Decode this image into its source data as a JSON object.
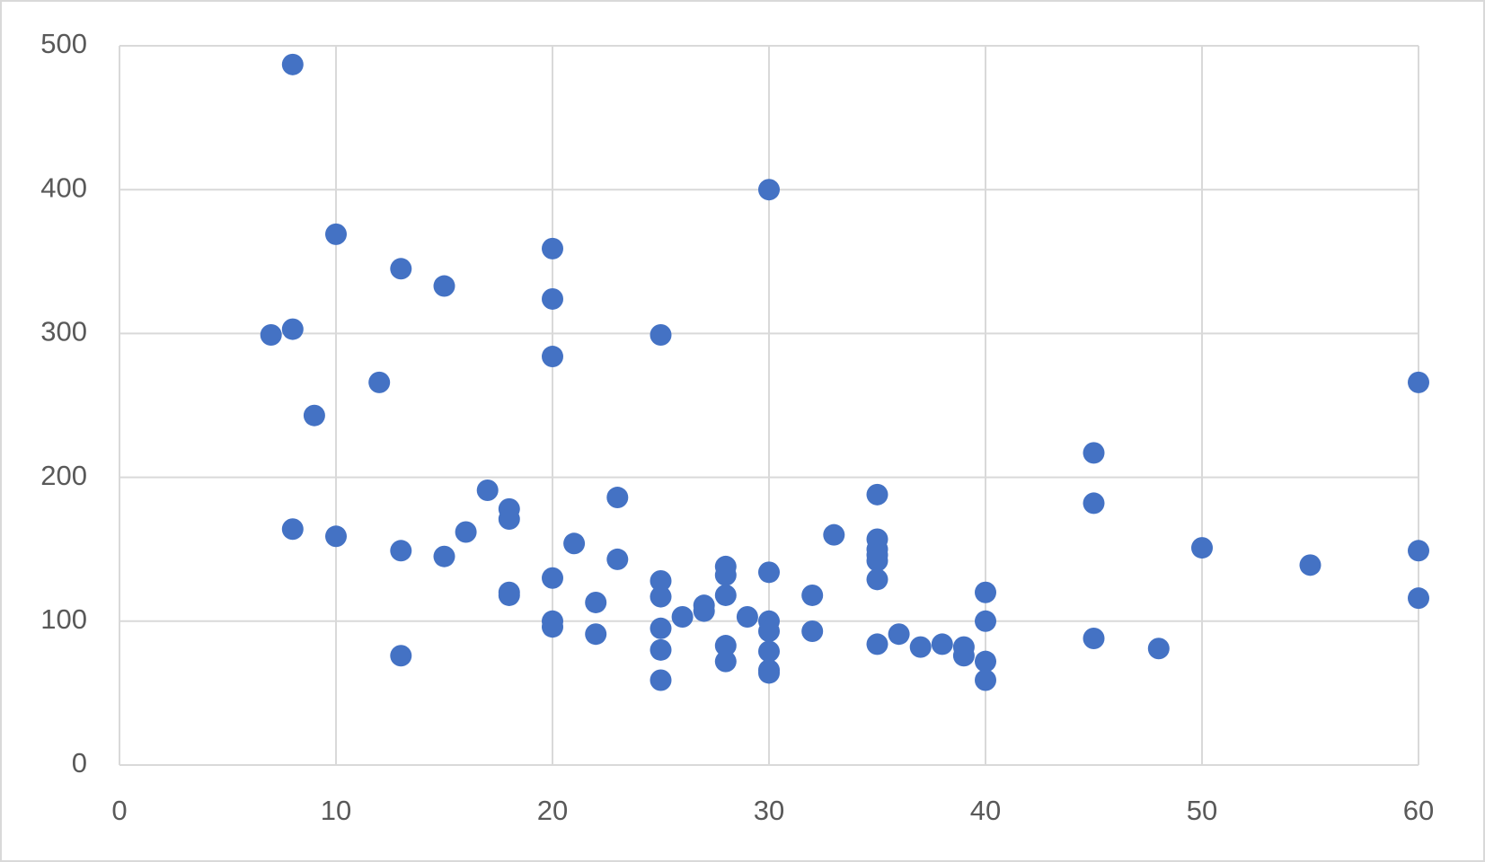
{
  "chart_data": {
    "type": "scatter",
    "color": "#4472c4",
    "grid": true,
    "x": [
      8,
      30,
      10,
      20,
      13,
      15,
      20,
      7,
      8,
      25,
      20,
      12,
      60,
      9,
      45,
      17,
      23,
      35,
      18,
      18,
      45,
      8,
      16,
      10,
      33,
      35,
      21,
      13,
      50,
      60,
      35,
      35,
      15,
      23,
      35,
      55,
      28,
      30,
      28,
      20,
      25,
      35,
      18,
      18,
      32,
      28,
      40,
      25,
      60,
      22,
      27,
      27,
      29,
      26,
      20,
      30,
      40,
      20,
      25,
      30,
      32,
      36,
      22,
      45,
      13,
      35,
      37,
      38,
      39,
      39,
      28,
      48,
      25,
      30,
      28,
      40,
      30,
      30,
      25,
      40
    ],
    "values": [
      487,
      400,
      369,
      359,
      345,
      333,
      324,
      299,
      303,
      299,
      284,
      266,
      266,
      243,
      217,
      191,
      186,
      188,
      178,
      171,
      182,
      164,
      162,
      159,
      160,
      157,
      154,
      149,
      151,
      149,
      150,
      146,
      145,
      143,
      142,
      139,
      138,
      134,
      132,
      130,
      128,
      129,
      120,
      118,
      118,
      118,
      120,
      117,
      116,
      113,
      111,
      107,
      103,
      103,
      100,
      100,
      100,
      96,
      95,
      93,
      93,
      91,
      91,
      88,
      76,
      84,
      82,
      84,
      82,
      76,
      83,
      81,
      80,
      79,
      72,
      72,
      66,
      64,
      59,
      59
    ],
    "xlim": [
      0,
      60
    ],
    "xticks": [
      0,
      10,
      20,
      30,
      40,
      50,
      60
    ],
    "ylim": [
      0,
      500
    ],
    "yticks": [
      0,
      100,
      200,
      300,
      400,
      500
    ]
  }
}
